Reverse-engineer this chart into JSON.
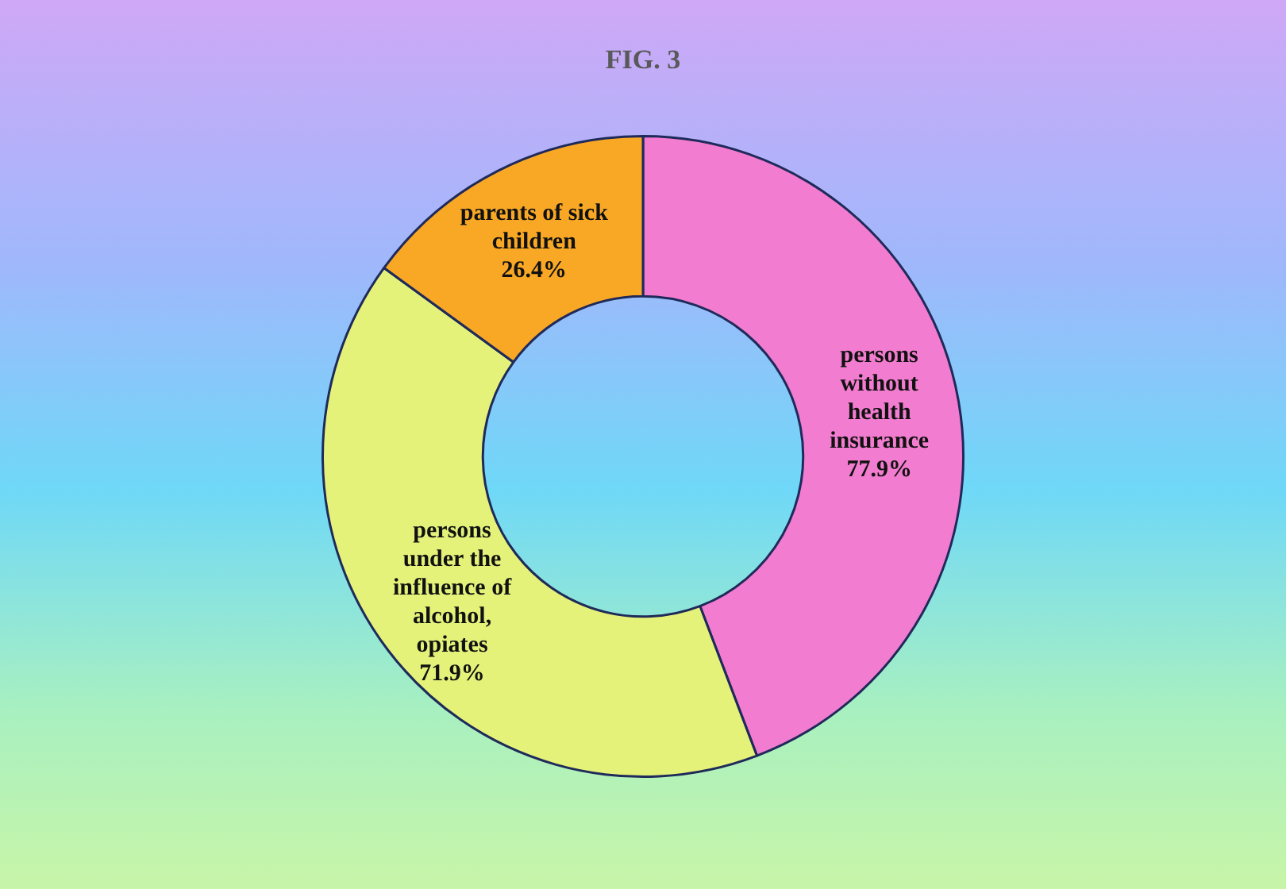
{
  "chart_data": {
    "type": "donut",
    "title": "FIG. 3",
    "categories": [
      "persons without health insurance",
      "persons under the influence of alcohol, opiates",
      "parents of sick children"
    ],
    "values": [
      77.9,
      71.9,
      26.4
    ],
    "colors": [
      "#f27ccf",
      "#e4f27a",
      "#f9a825"
    ],
    "value_labels": [
      "77.9%",
      "71.9%",
      "26.4%"
    ],
    "legend": false
  }
}
